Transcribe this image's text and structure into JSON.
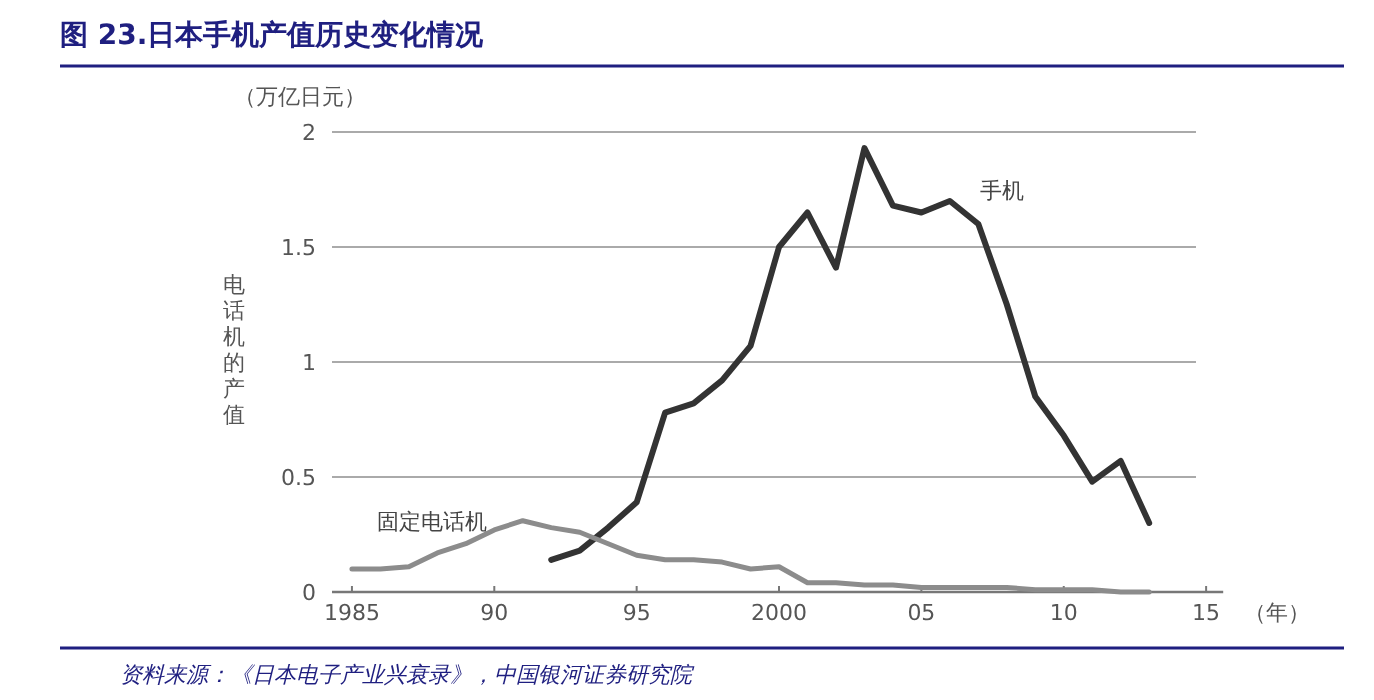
{
  "chart_data": {
    "type": "line",
    "title": "图 23.日本手机产值历史变化情况",
    "ylabel": "电话机的产值",
    "xlabel": "（年）",
    "annotations": [
      "（万亿日元）",
      "资料来源：《日本电子产业兴衰录》，中国银河证券研究院"
    ],
    "series": [
      {
        "name": "手机",
        "color": "#333333",
        "x": [
          1992,
          1993,
          1994,
          1995,
          1996,
          1997,
          1998,
          1999,
          2000,
          2001,
          2002,
          2003,
          2004,
          2005,
          2006,
          2007,
          2008,
          2009,
          2010,
          2011,
          2012,
          2013
        ],
        "values": [
          0.14,
          0.18,
          0.28,
          0.39,
          0.78,
          0.82,
          0.92,
          1.07,
          1.5,
          1.65,
          1.41,
          1.93,
          1.68,
          1.65,
          1.7,
          1.6,
          1.25,
          0.85,
          0.68,
          0.48,
          0.57,
          0.3
        ]
      },
      {
        "name": "固定电话机",
        "color": "#8c8c8c",
        "x": [
          1985,
          1986,
          1987,
          1988,
          1989,
          1990,
          1991,
          1992,
          1993,
          1994,
          1995,
          1996,
          1997,
          1998,
          1999,
          2000,
          2001,
          2002,
          2003,
          2004,
          2005,
          2006,
          2007,
          2008,
          2009,
          2010,
          2011,
          2012,
          2013
        ],
        "values": [
          0.1,
          0.1,
          0.11,
          0.17,
          0.21,
          0.27,
          0.31,
          0.28,
          0.26,
          0.21,
          0.16,
          0.14,
          0.14,
          0.13,
          0.1,
          0.11,
          0.04,
          0.04,
          0.03,
          0.03,
          0.02,
          0.02,
          0.02,
          0.02,
          0.01,
          0.01,
          0.01,
          0,
          0
        ]
      }
    ],
    "xlim": [
      1984.3,
      2015.6
    ],
    "ylim": [
      0,
      2
    ],
    "xticks": [
      1985,
      {
        "value": 1990,
        "label": "90"
      },
      {
        "value": 1995,
        "label": "95"
      },
      2000,
      {
        "value": 2005,
        "label": "05"
      },
      {
        "value": 2010,
        "label": "10"
      },
      {
        "value": 2015,
        "label": "15"
      }
    ],
    "yticks": [
      0,
      0.5,
      1,
      1.5,
      2
    ],
    "grid": "y",
    "legend": false,
    "marker": "none",
    "line_style": "solid"
  }
}
